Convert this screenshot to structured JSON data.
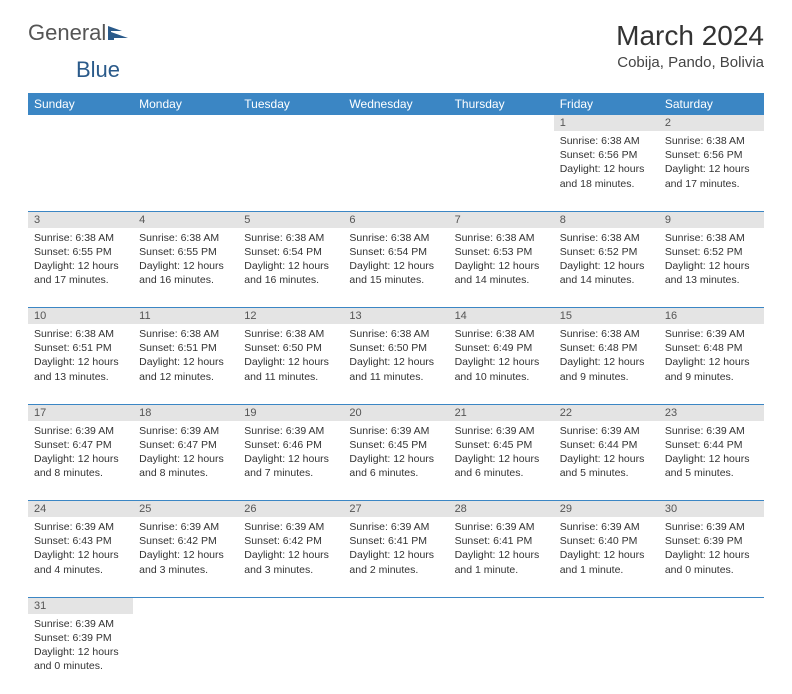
{
  "logo": {
    "general": "General",
    "blue": "Blue"
  },
  "title": "March 2024",
  "location": "Cobija, Pando, Bolivia",
  "day_headers": [
    "Sunday",
    "Monday",
    "Tuesday",
    "Wednesday",
    "Thursday",
    "Friday",
    "Saturday"
  ],
  "colors": {
    "header_bg": "#3b86c4",
    "header_fg": "#ffffff",
    "daynum_bg": "#e4e4e4",
    "rule": "#3b86c4"
  },
  "weeks": [
    [
      null,
      null,
      null,
      null,
      null,
      {
        "n": "1",
        "sr": "6:38 AM",
        "ss": "6:56 PM",
        "dl": "12 hours and 18 minutes."
      },
      {
        "n": "2",
        "sr": "6:38 AM",
        "ss": "6:56 PM",
        "dl": "12 hours and 17 minutes."
      }
    ],
    [
      {
        "n": "3",
        "sr": "6:38 AM",
        "ss": "6:55 PM",
        "dl": "12 hours and 17 minutes."
      },
      {
        "n": "4",
        "sr": "6:38 AM",
        "ss": "6:55 PM",
        "dl": "12 hours and 16 minutes."
      },
      {
        "n": "5",
        "sr": "6:38 AM",
        "ss": "6:54 PM",
        "dl": "12 hours and 16 minutes."
      },
      {
        "n": "6",
        "sr": "6:38 AM",
        "ss": "6:54 PM",
        "dl": "12 hours and 15 minutes."
      },
      {
        "n": "7",
        "sr": "6:38 AM",
        "ss": "6:53 PM",
        "dl": "12 hours and 14 minutes."
      },
      {
        "n": "8",
        "sr": "6:38 AM",
        "ss": "6:52 PM",
        "dl": "12 hours and 14 minutes."
      },
      {
        "n": "9",
        "sr": "6:38 AM",
        "ss": "6:52 PM",
        "dl": "12 hours and 13 minutes."
      }
    ],
    [
      {
        "n": "10",
        "sr": "6:38 AM",
        "ss": "6:51 PM",
        "dl": "12 hours and 13 minutes."
      },
      {
        "n": "11",
        "sr": "6:38 AM",
        "ss": "6:51 PM",
        "dl": "12 hours and 12 minutes."
      },
      {
        "n": "12",
        "sr": "6:38 AM",
        "ss": "6:50 PM",
        "dl": "12 hours and 11 minutes."
      },
      {
        "n": "13",
        "sr": "6:38 AM",
        "ss": "6:50 PM",
        "dl": "12 hours and 11 minutes."
      },
      {
        "n": "14",
        "sr": "6:38 AM",
        "ss": "6:49 PM",
        "dl": "12 hours and 10 minutes."
      },
      {
        "n": "15",
        "sr": "6:38 AM",
        "ss": "6:48 PM",
        "dl": "12 hours and 9 minutes."
      },
      {
        "n": "16",
        "sr": "6:39 AM",
        "ss": "6:48 PM",
        "dl": "12 hours and 9 minutes."
      }
    ],
    [
      {
        "n": "17",
        "sr": "6:39 AM",
        "ss": "6:47 PM",
        "dl": "12 hours and 8 minutes."
      },
      {
        "n": "18",
        "sr": "6:39 AM",
        "ss": "6:47 PM",
        "dl": "12 hours and 8 minutes."
      },
      {
        "n": "19",
        "sr": "6:39 AM",
        "ss": "6:46 PM",
        "dl": "12 hours and 7 minutes."
      },
      {
        "n": "20",
        "sr": "6:39 AM",
        "ss": "6:45 PM",
        "dl": "12 hours and 6 minutes."
      },
      {
        "n": "21",
        "sr": "6:39 AM",
        "ss": "6:45 PM",
        "dl": "12 hours and 6 minutes."
      },
      {
        "n": "22",
        "sr": "6:39 AM",
        "ss": "6:44 PM",
        "dl": "12 hours and 5 minutes."
      },
      {
        "n": "23",
        "sr": "6:39 AM",
        "ss": "6:44 PM",
        "dl": "12 hours and 5 minutes."
      }
    ],
    [
      {
        "n": "24",
        "sr": "6:39 AM",
        "ss": "6:43 PM",
        "dl": "12 hours and 4 minutes."
      },
      {
        "n": "25",
        "sr": "6:39 AM",
        "ss": "6:42 PM",
        "dl": "12 hours and 3 minutes."
      },
      {
        "n": "26",
        "sr": "6:39 AM",
        "ss": "6:42 PM",
        "dl": "12 hours and 3 minutes."
      },
      {
        "n": "27",
        "sr": "6:39 AM",
        "ss": "6:41 PM",
        "dl": "12 hours and 2 minutes."
      },
      {
        "n": "28",
        "sr": "6:39 AM",
        "ss": "6:41 PM",
        "dl": "12 hours and 1 minute."
      },
      {
        "n": "29",
        "sr": "6:39 AM",
        "ss": "6:40 PM",
        "dl": "12 hours and 1 minute."
      },
      {
        "n": "30",
        "sr": "6:39 AM",
        "ss": "6:39 PM",
        "dl": "12 hours and 0 minutes."
      }
    ],
    [
      {
        "n": "31",
        "sr": "6:39 AM",
        "ss": "6:39 PM",
        "dl": "12 hours and 0 minutes."
      },
      null,
      null,
      null,
      null,
      null,
      null
    ]
  ],
  "labels": {
    "sunrise": "Sunrise:",
    "sunset": "Sunset:",
    "daylight": "Daylight:"
  }
}
